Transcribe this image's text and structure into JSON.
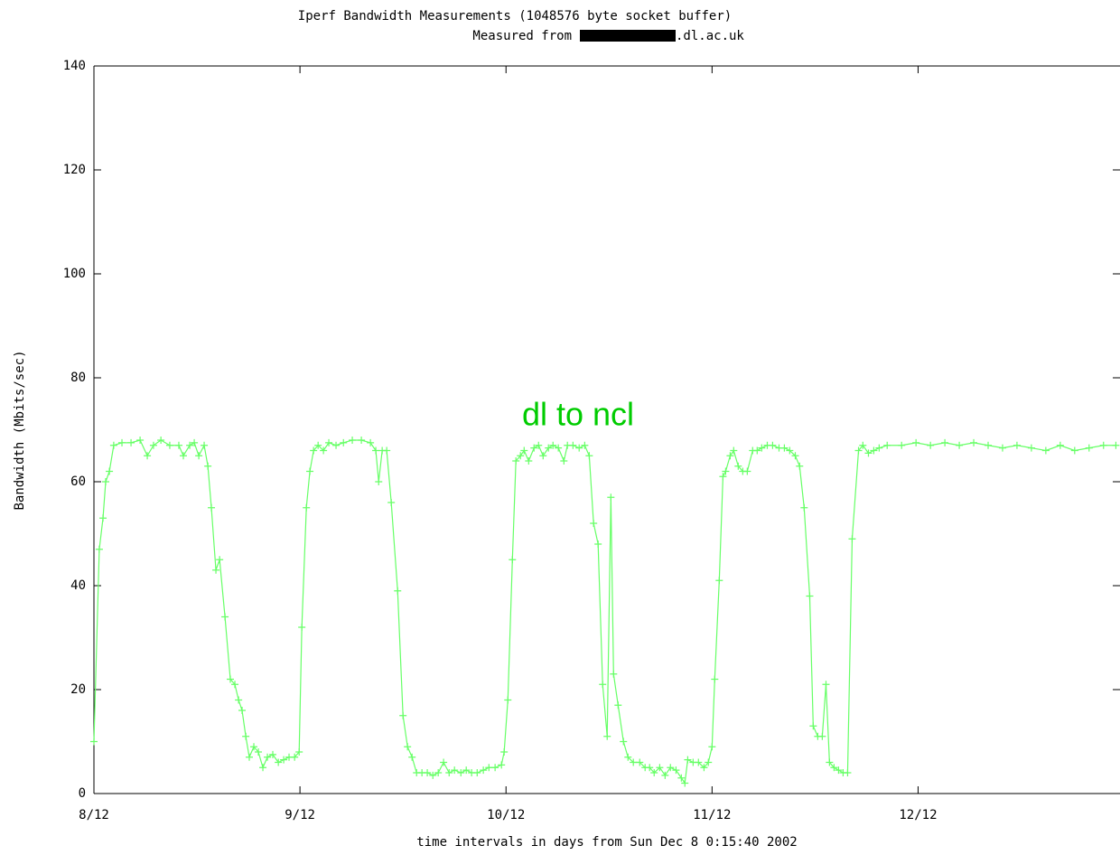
{
  "chart_data": {
    "type": "line",
    "title": "Iperf Bandwidth Measurements (1048576 byte socket buffer)",
    "subtitle_prefix": "Measured from",
    "subtitle_suffix": ".dl.ac.uk",
    "xlabel": "time intervals in days from Sun Dec  8  0:15:40 2002",
    "ylabel": "Bandwidth (Mbits/sec)",
    "annotation": "dl to ncl",
    "xlim": [
      0,
      4.98
    ],
    "ylim": [
      0,
      140
    ],
    "yticks": [
      0,
      20,
      40,
      60,
      80,
      100,
      120,
      140
    ],
    "xticks": [
      {
        "value": 0,
        "label": "8/12"
      },
      {
        "value": 1,
        "label": "9/12"
      },
      {
        "value": 2,
        "label": "10/12"
      },
      {
        "value": 3,
        "label": "11/12"
      },
      {
        "value": 4,
        "label": "12/12"
      }
    ],
    "x": [
      0,
      0.026,
      0.044,
      0.057,
      0.075,
      0.096,
      0.136,
      0.18,
      0.224,
      0.259,
      0.289,
      0.325,
      0.368,
      0.412,
      0.434,
      0.465,
      0.487,
      0.509,
      0.535,
      0.553,
      0.57,
      0.592,
      0.61,
      0.636,
      0.662,
      0.684,
      0.702,
      0.719,
      0.737,
      0.754,
      0.776,
      0.798,
      0.82,
      0.842,
      0.868,
      0.895,
      0.921,
      0.947,
      0.974,
      0.996,
      1.009,
      1.031,
      1.048,
      1.066,
      1.088,
      1.114,
      1.14,
      1.175,
      1.211,
      1.254,
      1.298,
      1.342,
      1.368,
      1.382,
      1.399,
      1.421,
      1.443,
      1.474,
      1.5,
      1.522,
      1.544,
      1.566,
      1.592,
      1.618,
      1.645,
      1.671,
      1.697,
      1.724,
      1.75,
      1.781,
      1.807,
      1.833,
      1.86,
      1.89,
      1.917,
      1.947,
      1.978,
      1.991,
      2.009,
      2.031,
      2.048,
      2.07,
      2.088,
      2.11,
      2.136,
      2.158,
      2.18,
      2.206,
      2.228,
      2.254,
      2.281,
      2.298,
      2.325,
      2.355,
      2.382,
      2.404,
      2.425,
      2.447,
      2.469,
      2.491,
      2.509,
      2.522,
      2.544,
      2.57,
      2.592,
      2.618,
      2.649,
      2.675,
      2.697,
      2.719,
      2.746,
      2.772,
      2.798,
      2.825,
      2.851,
      2.868,
      2.882,
      2.908,
      2.934,
      2.961,
      2.982,
      3.0,
      3.013,
      3.035,
      3.053,
      3.066,
      3.088,
      3.105,
      3.127,
      3.149,
      3.171,
      3.197,
      3.219,
      3.241,
      3.268,
      3.294,
      3.325,
      3.351,
      3.377,
      3.404,
      3.425,
      3.447,
      3.474,
      3.491,
      3.513,
      3.535,
      3.553,
      3.57,
      3.592,
      3.614,
      3.636,
      3.658,
      3.68,
      3.711,
      3.732,
      3.759,
      3.785,
      3.811,
      3.85,
      3.92,
      3.99,
      4.06,
      4.13,
      4.2,
      4.27,
      4.34,
      4.41,
      4.48,
      4.55,
      4.62,
      4.69,
      4.76,
      4.83,
      4.9,
      4.96
    ],
    "series": [
      {
        "color": "#66ff66",
        "values": [
          10,
          47,
          53,
          60,
          62,
          67,
          67.5,
          67.5,
          68,
          65,
          67,
          68,
          67,
          67,
          65,
          67,
          67.5,
          65,
          67,
          63,
          55,
          43,
          45,
          34,
          22,
          21,
          18,
          16,
          11,
          7,
          9,
          8,
          5,
          7,
          7.5,
          6,
          6.5,
          7,
          7,
          8,
          32,
          55,
          62,
          66,
          67,
          66,
          67.5,
          67,
          67.5,
          68,
          68,
          67.5,
          66,
          60,
          66,
          66,
          56,
          39,
          15,
          9,
          7,
          4,
          4,
          4,
          3.5,
          4,
          6,
          4,
          4.5,
          4,
          4.5,
          4,
          4,
          4.5,
          5,
          5,
          5.5,
          8,
          18,
          45,
          64,
          65,
          66,
          64,
          66.5,
          67,
          65,
          66.5,
          67,
          66.5,
          64,
          67,
          67,
          66.5,
          67,
          65,
          52,
          48,
          21,
          11,
          57,
          23,
          17,
          10,
          7,
          6,
          6,
          5,
          5,
          4,
          5,
          3.5,
          5,
          4.5,
          3,
          2,
          6.5,
          6,
          6,
          5,
          6,
          9,
          22,
          41,
          61,
          62,
          65,
          66,
          63,
          62,
          62,
          66,
          66,
          66.5,
          67,
          67,
          66.5,
          66.5,
          66,
          65,
          63,
          55,
          38,
          13,
          11,
          11,
          21,
          6,
          5,
          4.5,
          4,
          4,
          49,
          66,
          67,
          65.5,
          66,
          66.5,
          67,
          67,
          67.5,
          67,
          67.5,
          67,
          67.5,
          67,
          66.5,
          67,
          66.5,
          66,
          67,
          66,
          66.5,
          67,
          67
        ]
      }
    ]
  }
}
